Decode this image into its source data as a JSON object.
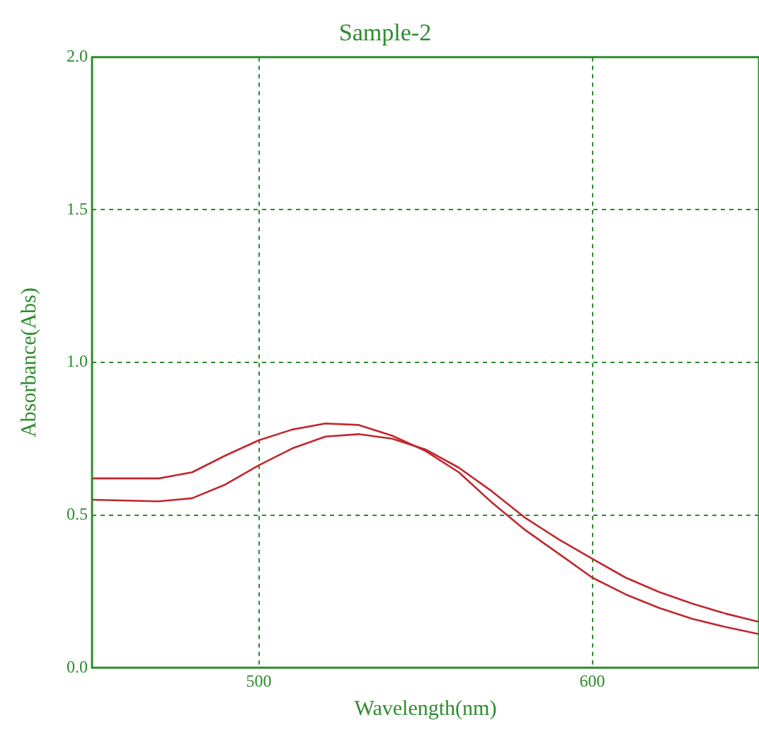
{
  "chart_data": {
    "type": "line",
    "title": "Sample-2",
    "xlabel": "Wavelength(nm)",
    "ylabel": "Absorbance(Abs)",
    "x": [
      450,
      470,
      480,
      490,
      500,
      510,
      520,
      530,
      540,
      550,
      560,
      570,
      580,
      590,
      600,
      610,
      620,
      630,
      640,
      650
    ],
    "series": [
      {
        "color": "#c0282d",
        "values": [
          0.62,
          0.62,
          0.64,
          0.695,
          0.745,
          0.78,
          0.8,
          0.795,
          0.76,
          0.71,
          0.64,
          0.54,
          0.45,
          0.373,
          0.295,
          0.24,
          0.196,
          0.16,
          0.133,
          0.11
        ]
      },
      {
        "color": "#c0282d",
        "values": [
          0.55,
          0.545,
          0.555,
          0.6,
          0.663,
          0.718,
          0.757,
          0.765,
          0.75,
          0.715,
          0.655,
          0.577,
          0.49,
          0.42,
          0.357,
          0.295,
          0.248,
          0.21,
          0.177,
          0.15
        ]
      }
    ],
    "xlim": [
      450,
      650
    ],
    "ylim": [
      0,
      2
    ],
    "xticks": [
      500,
      600
    ],
    "yticks": [
      {
        "value": 0,
        "label": "0.0"
      },
      {
        "value": 0.5,
        "label": "0.5"
      },
      {
        "value": 1,
        "label": "1.0"
      },
      {
        "value": 1.5,
        "label": "1.5"
      },
      {
        "value": 2,
        "label": "2.0"
      }
    ],
    "grid": true,
    "legend": false,
    "marker": "none",
    "line_style": "solid"
  }
}
